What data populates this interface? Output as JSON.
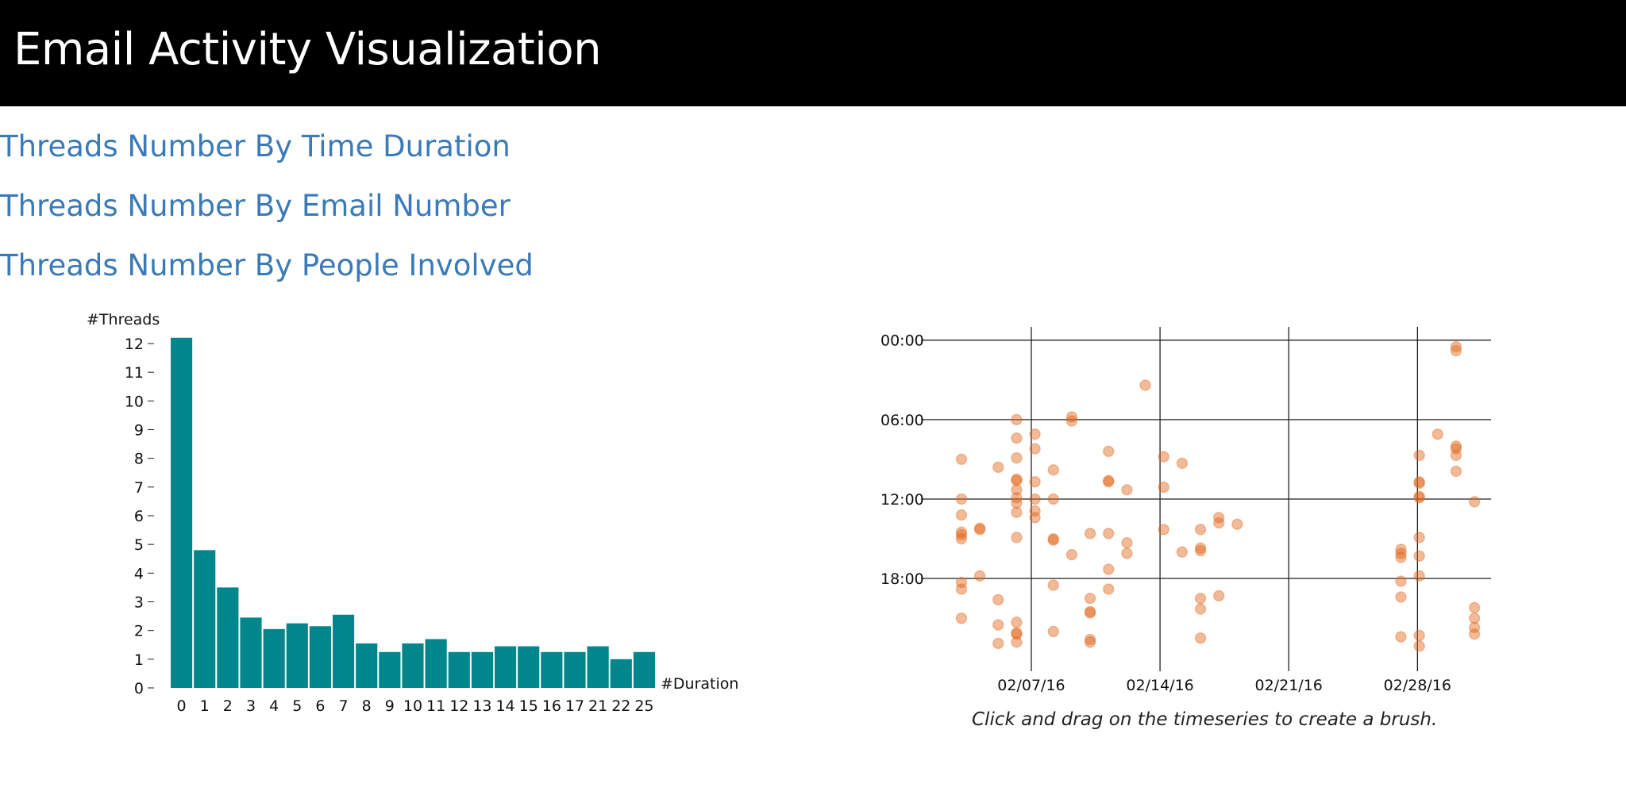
{
  "header": {
    "title": "Email Activity Visualization"
  },
  "nav": {
    "links": [
      {
        "label": "Threads Number By Time Duration"
      },
      {
        "label": "Threads Number By Email Number"
      },
      {
        "label": "Threads Number By People Involved"
      }
    ]
  },
  "colors": {
    "header_bg": "#000000",
    "link": "#3a7ab8",
    "bar": "#00868b",
    "dot": "#e0671a"
  },
  "chart_data": [
    {
      "type": "bar",
      "ylabel": "#Threads",
      "xlabel": "#Duration",
      "ylim": [
        0,
        12
      ],
      "yticks": [
        0,
        1,
        2,
        3,
        4,
        5,
        6,
        7,
        8,
        9,
        10,
        11,
        12
      ],
      "categories": [
        "0",
        "1",
        "2",
        "3",
        "4",
        "5",
        "6",
        "7",
        "8",
        "9",
        "10",
        "11",
        "12",
        "13",
        "14",
        "15",
        "16",
        "17",
        "21",
        "22",
        "25"
      ],
      "values": [
        12.2,
        4.8,
        3.5,
        2.45,
        2.05,
        2.25,
        2.15,
        2.55,
        1.55,
        1.25,
        1.55,
        1.7,
        1.25,
        1.25,
        1.45,
        1.45,
        1.25,
        1.25,
        1.45,
        1.0,
        1.25
      ],
      "grid": false
    },
    {
      "type": "scatter",
      "x_axis": "date",
      "y_axis": "time of day (hours, 00:00 at top)",
      "xlim": [
        "2016-02-01",
        "2016-03-03"
      ],
      "ylim": [
        -1,
        25
      ],
      "x_ticks": [
        "02/07/16",
        "02/14/16",
        "02/21/16",
        "02/28/16"
      ],
      "y_ticks": [
        "00:00",
        "06:00",
        "12:00",
        "18:00"
      ],
      "grid": true,
      "note": "Click and drag on the timeseries to create a brush.",
      "points": [
        [
          2.2,
          9
        ],
        [
          2.2,
          12
        ],
        [
          2.2,
          13.2
        ],
        [
          2.2,
          14.5
        ],
        [
          2.2,
          14.7
        ],
        [
          2.2,
          15
        ],
        [
          2.2,
          18.3
        ],
        [
          2.2,
          18.8
        ],
        [
          2.2,
          21
        ],
        [
          3.2,
          14.2
        ],
        [
          3.2,
          14.3
        ],
        [
          3.2,
          17.8
        ],
        [
          4.2,
          9.6
        ],
        [
          4.2,
          19.6
        ],
        [
          4.2,
          21.5
        ],
        [
          4.2,
          22.9
        ],
        [
          5.2,
          6
        ],
        [
          5.2,
          7.4
        ],
        [
          5.2,
          8.9
        ],
        [
          5.2,
          10.5
        ],
        [
          5.2,
          10.6
        ],
        [
          5.2,
          11.3
        ],
        [
          5.2,
          11.9
        ],
        [
          5.2,
          12.3
        ],
        [
          5.2,
          13
        ],
        [
          5.2,
          14.9
        ],
        [
          5.2,
          21.3
        ],
        [
          5.2,
          22.1
        ],
        [
          5.2,
          22.2
        ],
        [
          5.2,
          22.8
        ],
        [
          6.2,
          7.1
        ],
        [
          6.2,
          8.2
        ],
        [
          6.2,
          10.7
        ],
        [
          6.2,
          12
        ],
        [
          6.2,
          12.9
        ],
        [
          6.2,
          13.4
        ],
        [
          7.2,
          9.8
        ],
        [
          7.2,
          12
        ],
        [
          7.2,
          15
        ],
        [
          7.2,
          15.1
        ],
        [
          7.2,
          18.5
        ],
        [
          7.2,
          22
        ],
        [
          8.2,
          5.8
        ],
        [
          8.2,
          6.1
        ],
        [
          8.2,
          16.2
        ],
        [
          9.2,
          14.6
        ],
        [
          9.2,
          19.5
        ],
        [
          9.2,
          20.5
        ],
        [
          9.2,
          20.6
        ],
        [
          9.2,
          22.6
        ],
        [
          9.2,
          22.8
        ],
        [
          10.2,
          8.4
        ],
        [
          10.2,
          14.6
        ],
        [
          10.2,
          17.3
        ],
        [
          10.2,
          18.8
        ],
        [
          10.2,
          10.6
        ],
        [
          10.2,
          10.7
        ],
        [
          11.2,
          15.3
        ],
        [
          11.2,
          16.1
        ],
        [
          11.2,
          11.3
        ],
        [
          12.2,
          3.4
        ],
        [
          13.2,
          8.8
        ],
        [
          13.2,
          11.1
        ],
        [
          13.2,
          14.3
        ],
        [
          14.2,
          9.3
        ],
        [
          14.2,
          16
        ],
        [
          15.2,
          14.3
        ],
        [
          15.2,
          15.7
        ],
        [
          15.2,
          15.9
        ],
        [
          15.2,
          19.5
        ],
        [
          15.2,
          20.3
        ],
        [
          15.2,
          22.5
        ],
        [
          16.2,
          13.4
        ],
        [
          16.2,
          13.8
        ],
        [
          16.2,
          19.3
        ],
        [
          17.2,
          13.9
        ],
        [
          26.1,
          15.8
        ],
        [
          26.1,
          16.1
        ],
        [
          26.1,
          16.4
        ],
        [
          26.1,
          18.2
        ],
        [
          26.1,
          19.4
        ],
        [
          26.1,
          22.4
        ],
        [
          27.1,
          8.7
        ],
        [
          27.1,
          10.7
        ],
        [
          27.1,
          10.8
        ],
        [
          27.1,
          11.8
        ],
        [
          27.1,
          11.9
        ],
        [
          27.1,
          14.9
        ],
        [
          27.1,
          16.3
        ],
        [
          27.1,
          17.8
        ],
        [
          27.1,
          22.3
        ],
        [
          27.1,
          23.1
        ],
        [
          28.1,
          7.1
        ],
        [
          29.1,
          0.5
        ],
        [
          29.1,
          0.8
        ],
        [
          29.1,
          8
        ],
        [
          29.1,
          8.2
        ],
        [
          29.1,
          8.7
        ],
        [
          29.1,
          9.9
        ],
        [
          30.1,
          12.2
        ],
        [
          30.1,
          20.2
        ],
        [
          30.1,
          21
        ],
        [
          30.1,
          21.7
        ],
        [
          30.1,
          22.2
        ]
      ]
    }
  ]
}
